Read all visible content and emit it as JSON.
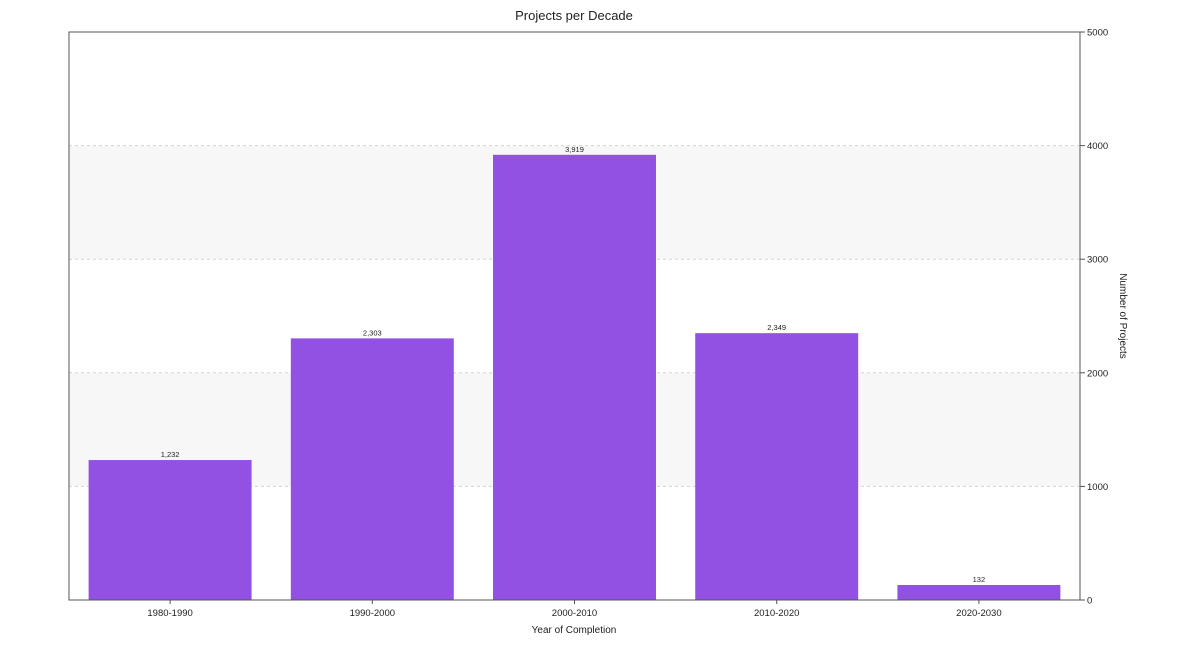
{
  "chart_data": {
    "type": "bar",
    "title": "Projects per Decade",
    "xlabel": "Year of Completion",
    "ylabel": "Number of Projects",
    "categories": [
      "1980-1990",
      "1990-2000",
      "2000-2010",
      "2010-2020",
      "2020-2030"
    ],
    "values": [
      1232,
      2303,
      3919,
      2349,
      132
    ],
    "value_labels": [
      "1,232",
      "2,303",
      "3,919",
      "2,349",
      "132"
    ],
    "ylim": [
      0,
      5000
    ],
    "yticks": [
      0,
      1000,
      2000,
      3000,
      4000,
      5000
    ],
    "ytick_labels": [
      "0",
      "1000",
      "2000",
      "3000",
      "4000",
      "5000"
    ],
    "y_axis_side": "right",
    "grid": true,
    "legend": false,
    "colors": {
      "bar": "#9351e4",
      "band": "#f7f7f7"
    }
  }
}
